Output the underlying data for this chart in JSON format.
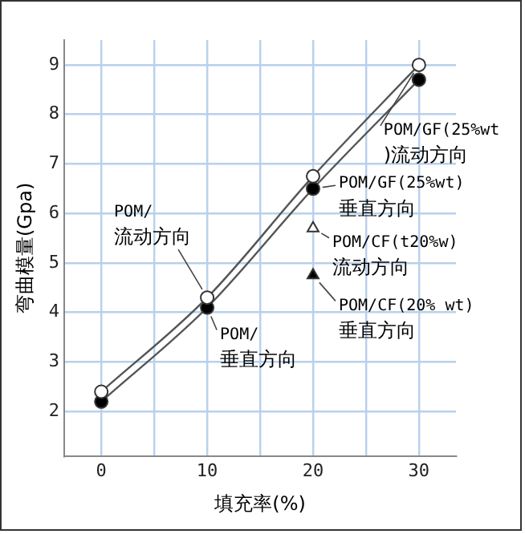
{
  "chart_data": {
    "type": "line",
    "xlabel": "填充率(%)",
    "ylabel": "弯曲模量(Gpa)",
    "xlim": [
      -3.5,
      33.5
    ],
    "xticks": [
      0,
      {
        "value": 5,
        "label": null
      },
      10,
      {
        "value": 15,
        "label": null
      },
      20,
      {
        "value": 25,
        "label": null
      },
      30
    ],
    "ylim": [
      1.1,
      9.5
    ],
    "yticks": [
      2,
      3,
      4,
      5,
      6,
      7,
      8,
      9
    ],
    "grid": true,
    "legend": false,
    "series": [
      {
        "x": [
          0,
          10,
          20,
          30
        ],
        "values": [
          2.4,
          4.3,
          6.75,
          9.0
        ],
        "color": "#ffffff",
        "marker": "circle"
      },
      {
        "x": [
          0,
          10,
          20,
          30
        ],
        "values": [
          2.2,
          4.1,
          6.5,
          8.7
        ],
        "color": "#000000",
        "marker": "circle"
      },
      {
        "type": "scatter",
        "x": [
          20
        ],
        "values": [
          5.7
        ],
        "color": "#ffffff",
        "marker": "triangle"
      },
      {
        "type": "scatter",
        "x": [
          20
        ],
        "values": [
          4.75
        ],
        "color": "#000000",
        "marker": "triangle"
      }
    ],
    "annotations": [
      {
        "text": "POM/\n流动方向",
        "x": 10,
        "y": 4.3
      },
      {
        "text": "POM/\n垂直方向",
        "x": 10,
        "y": 4.1
      },
      {
        "text": "POM/GF(25%wt\n)流动方向",
        "x": 30,
        "y": 9.0
      },
      {
        "text": "POM/GF(25%wt)\n垂直方向",
        "x": 20,
        "y": 6.5
      },
      {
        "text": "POM/CF(t20%w)\n流动方向",
        "x": 20,
        "y": 5.7
      },
      {
        "text": "POM/CF(20% wt)\n垂直方向",
        "x": 20,
        "y": 4.75
      }
    ]
  }
}
